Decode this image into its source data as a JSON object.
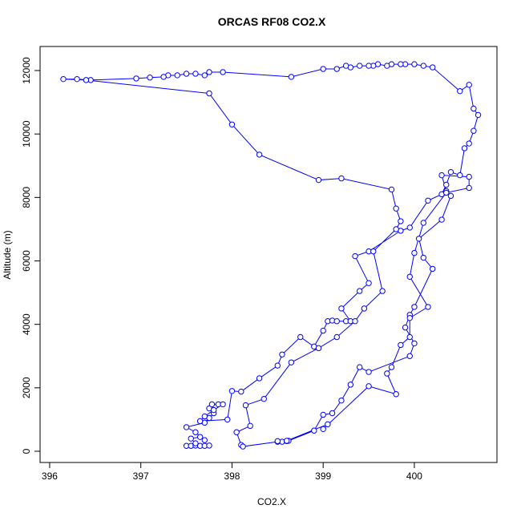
{
  "chart_data": {
    "type": "line-points",
    "title": "ORCAS RF08 CO2.X",
    "x_label": "CO2.X",
    "y_label": "Altitude (m)",
    "color": "#0000ff",
    "x": [
      397.5,
      397.55,
      397.6,
      397.65,
      397.7,
      397.75,
      397.6,
      397.55,
      397.65,
      397.7,
      397.6,
      397.5,
      397.7,
      397.75,
      397.8,
      397.75,
      397.78,
      397.85,
      397.9,
      397.8,
      397.7,
      397.65,
      397.95,
      398.0,
      398.1,
      398.3,
      398.5,
      398.55,
      398.75,
      398.9,
      399.0,
      399.05,
      399.1,
      399.15,
      399.25,
      399.3,
      399.2,
      399.4,
      399.5,
      399.35,
      399.5,
      399.85,
      399.95,
      400.15,
      400.3,
      400.35,
      400.4,
      400.5,
      400.55,
      400.6,
      400.65,
      400.7,
      400.65,
      400.6,
      400.5,
      400.2,
      400.1,
      400.0,
      399.9,
      399.85,
      399.75,
      399.7,
      399.6,
      399.55,
      399.5,
      399.4,
      399.3,
      399.25,
      399.15,
      399.0,
      398.65,
      397.9,
      397.75,
      397.7,
      397.6,
      397.5,
      397.4,
      397.3,
      397.25,
      397.1,
      396.95,
      396.45,
      396.3,
      396.15,
      396.4,
      397.75,
      398.0,
      398.3,
      398.95,
      399.2,
      399.75,
      399.8,
      399.85,
      399.8,
      399.55,
      399.65,
      399.45,
      399.35,
      399.15,
      398.95,
      398.65,
      398.35,
      398.15,
      398.2,
      398.05,
      398.1,
      398.12,
      398.5,
      398.55,
      398.6,
      398.62,
      398.9,
      399.0,
      399.1,
      399.2,
      399.3,
      399.4,
      399.5,
      399.95,
      400.0,
      399.9,
      399.95,
      400.0,
      400.2,
      400.1,
      400.05,
      400.3,
      400.4,
      400.35,
      400.3,
      400.6,
      400.6,
      400.35,
      400.1,
      400.0,
      399.95,
      400.15,
      399.95,
      399.95,
      399.85,
      399.75,
      399.7,
      399.8,
      399.5,
      399.0,
      399.05,
      398.6,
      398.5
    ],
    "y": [
      170,
      170,
      180,
      170,
      170,
      180,
      250,
      400,
      450,
      350,
      600,
      760,
      900,
      1050,
      1200,
      1350,
      1480,
      1480,
      1480,
      1300,
      1100,
      950,
      1000,
      1900,
      1880,
      2300,
      2700,
      3050,
      3600,
      3300,
      3800,
      4100,
      4120,
      4100,
      4100,
      4100,
      4500,
      5050,
      5300,
      6150,
      6300,
      6950,
      7050,
      7900,
      8100,
      8400,
      8800,
      8700,
      9550,
      9700,
      10100,
      10600,
      10800,
      11550,
      11350,
      12100,
      12150,
      12200,
      12200,
      12200,
      12200,
      12150,
      12200,
      12150,
      12150,
      12150,
      12100,
      12150,
      12050,
      12050,
      11800,
      11950,
      11950,
      11850,
      11900,
      11900,
      11850,
      11850,
      11800,
      11780,
      11750,
      11700,
      11730,
      11730,
      11700,
      11280,
      10300,
      9350,
      8550,
      8600,
      8250,
      7650,
      7250,
      7000,
      6300,
      5050,
      4500,
      4100,
      3600,
      3250,
      2800,
      1650,
      1450,
      800,
      600,
      200,
      150,
      300,
      300,
      320,
      330,
      650,
      1150,
      1200,
      1600,
      2100,
      2650,
      2500,
      3000,
      3400,
      3900,
      4300,
      4550,
      5750,
      6100,
      6700,
      7300,
      8050,
      8200,
      8700,
      8650,
      8300,
      8150,
      7200,
      6250,
      5500,
      4550,
      4200,
      3600,
      3350,
      2650,
      2450,
      1800,
      2050,
      700,
      850,
      330,
      320
    ],
    "xlim": [
      395.895,
      400.906
    ],
    "ylim": [
      -354,
      12758
    ],
    "xticks": [
      396,
      397,
      398,
      399,
      400
    ],
    "yticks": [
      0,
      2000,
      4000,
      6000,
      8000,
      10000,
      12000
    ]
  }
}
